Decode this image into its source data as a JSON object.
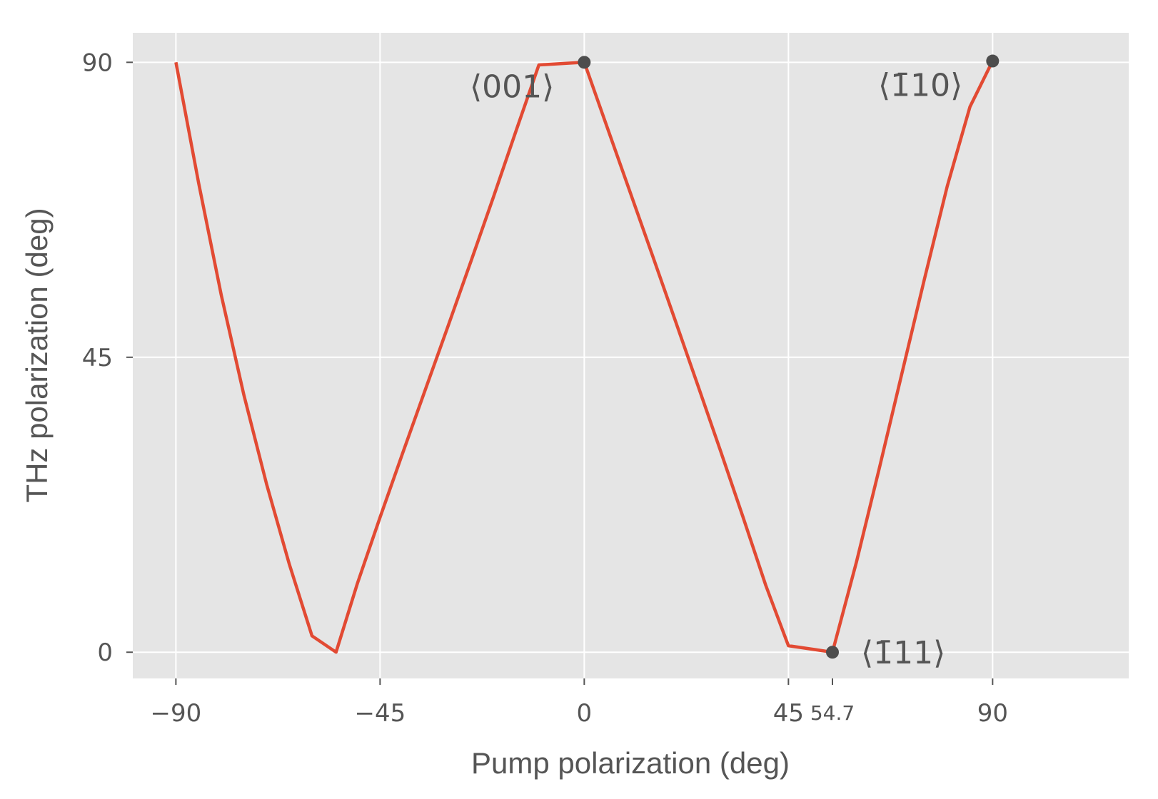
{
  "chart_data": {
    "type": "line",
    "title": "",
    "xlabel": "Pump polarization (deg)",
    "ylabel": "THz polarization (deg)",
    "xlim": [
      -99.5,
      120
    ],
    "ylim": [
      -4,
      94.5
    ],
    "grid": true,
    "xticks": [
      {
        "value": -90,
        "label": "−90"
      },
      {
        "value": -45,
        "label": "−45"
      },
      {
        "value": 0,
        "label": "0"
      },
      {
        "value": 45,
        "label": "45"
      },
      {
        "value": 54.7,
        "label": "54.7",
        "minor": true
      },
      {
        "value": 90,
        "label": "90"
      }
    ],
    "yticks": [
      {
        "value": 0,
        "label": "0"
      },
      {
        "value": 45,
        "label": "45"
      },
      {
        "value": 90,
        "label": "90"
      }
    ],
    "series": [
      {
        "color": "#e24a33",
        "points": [
          [
            -90,
            90
          ],
          [
            -85,
            71.6
          ],
          [
            -80,
            54.5
          ],
          [
            -75,
            39.2
          ],
          [
            -70,
            25.6
          ],
          [
            -65,
            13.4
          ],
          [
            -60,
            2.5
          ],
          [
            -54.7,
            0
          ],
          [
            -50,
            10.5
          ],
          [
            -45,
            20.6
          ],
          [
            -40,
            30.4
          ],
          [
            -35,
            40.1
          ],
          [
            -30,
            49.8
          ],
          [
            -25,
            59.6
          ],
          [
            -20,
            69.5
          ],
          [
            -15,
            79.6
          ],
          [
            -10,
            89.6
          ],
          [
            0,
            90
          ],
          [
            5,
            80.2
          ],
          [
            10,
            70.4
          ],
          [
            15,
            60.6
          ],
          [
            20,
            50.7
          ],
          [
            25,
            40.8
          ],
          [
            30,
            30.8
          ],
          [
            35,
            20.6
          ],
          [
            40,
            10.2
          ],
          [
            45,
            1.0
          ],
          [
            54.7,
            0
          ],
          [
            60,
            13.8
          ],
          [
            65,
            28.0
          ],
          [
            70,
            42.5
          ],
          [
            75,
            57.0
          ],
          [
            80,
            71.1
          ],
          [
            85,
            83.2
          ],
          [
            90,
            90.2
          ]
        ]
      }
    ],
    "markers": [
      {
        "x": 0,
        "y": 90,
        "color": "#4d4d4d"
      },
      {
        "x": 54.7,
        "y": 0,
        "color": "#4d4d4d"
      },
      {
        "x": 90,
        "y": 90.2,
        "color": "#4d4d4d"
      }
    ],
    "annotations": [
      {
        "label": "⟨001⟩",
        "x": 0,
        "y": 90,
        "position": "left-below"
      },
      {
        "label": "⟨1̄11⟩",
        "x": 54.7,
        "y": 0,
        "position": "right"
      },
      {
        "label": "⟨1̄10⟩",
        "x": 90,
        "y": 90.2,
        "position": "left-below"
      }
    ],
    "colors": {
      "panel": "#e5e5e5",
      "grid": "#ffffff",
      "line": "#e24a33",
      "marker": "#4d4d4d",
      "text": "#555555"
    }
  }
}
